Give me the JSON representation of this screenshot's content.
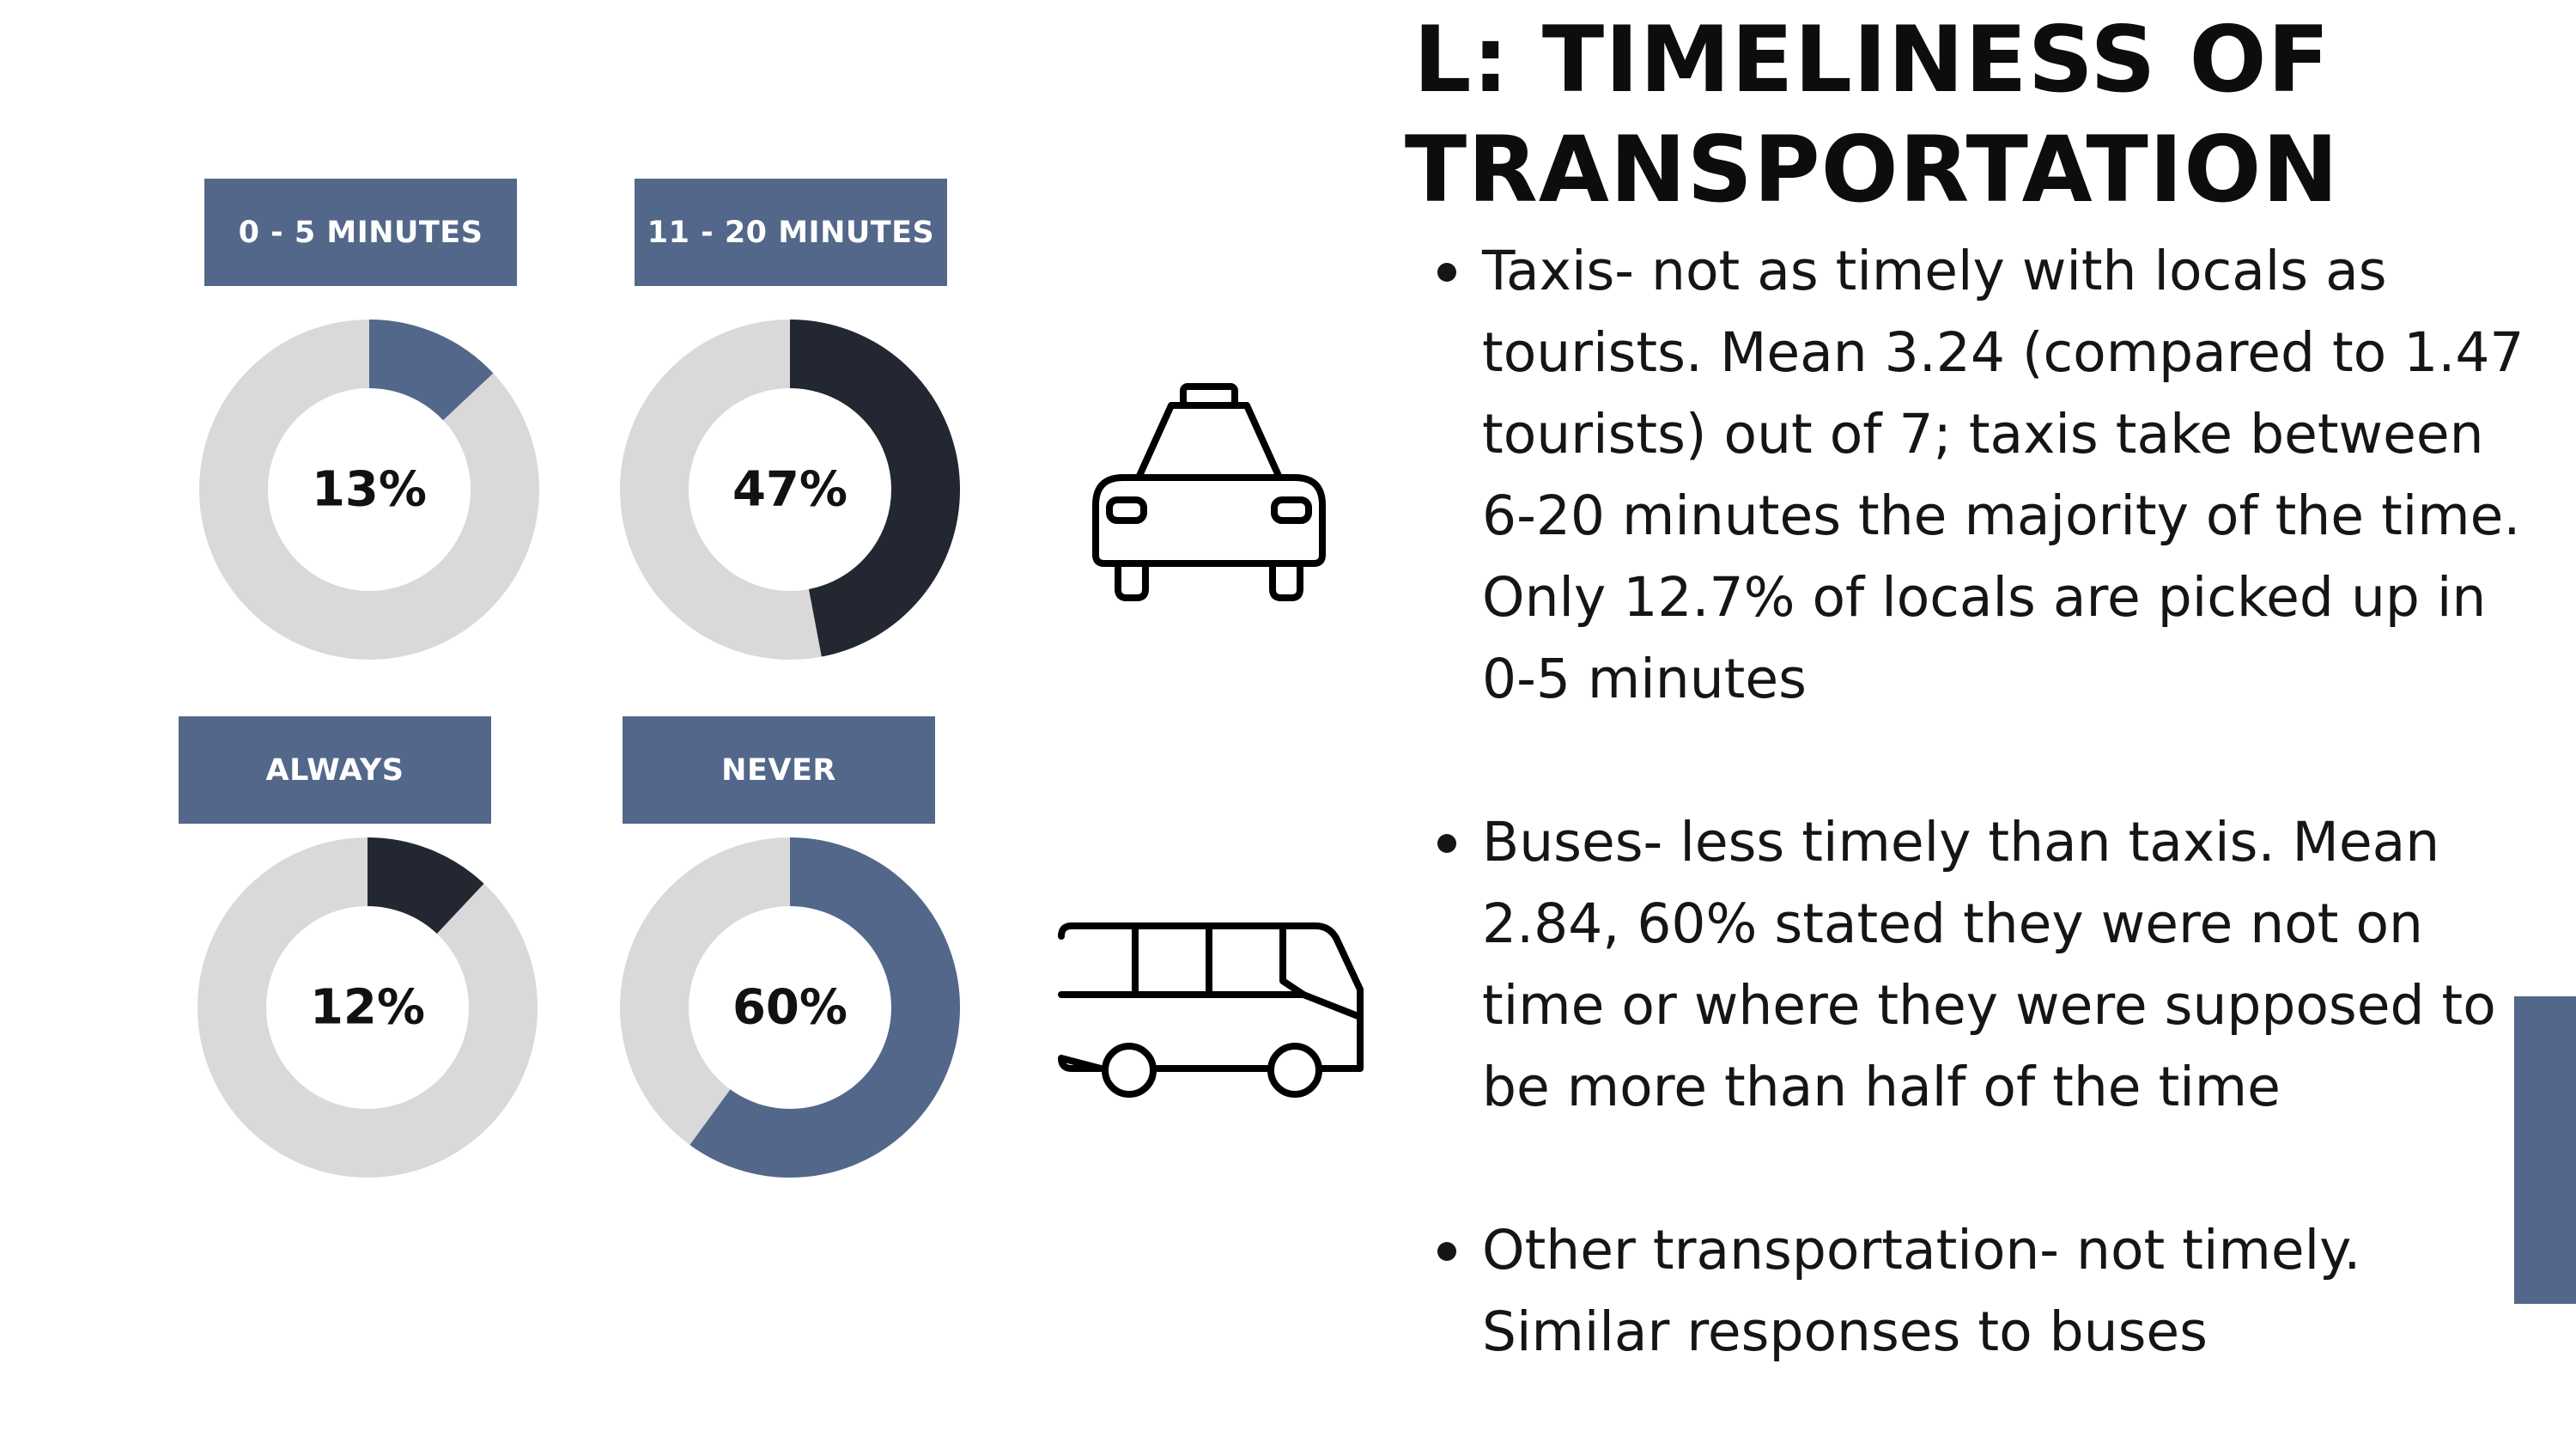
{
  "title": "L: TIMELINESS OF TRANSPORTATION",
  "colors": {
    "slate": "#53678a",
    "dark": "#222732",
    "track": "#d9d9d9",
    "text": "#111111"
  },
  "chart_data": [
    {
      "type": "pie",
      "title": "0 - 5 MINUTES",
      "value_percent": 13,
      "center_label": "13%",
      "fill_color": "#53678a"
    },
    {
      "type": "pie",
      "title": "11 - 20 MINUTES",
      "value_percent": 47,
      "center_label": "47%",
      "fill_color": "#222732"
    },
    {
      "type": "pie",
      "title": "ALWAYS",
      "value_percent": 12,
      "center_label": "12%",
      "fill_color": "#222732"
    },
    {
      "type": "pie",
      "title": "NEVER",
      "value_percent": 60,
      "center_label": "60%",
      "fill_color": "#53678a"
    }
  ],
  "icons": {
    "taxi": "taxi-icon",
    "bus": "bus-icon"
  },
  "bullets": [
    "Taxis- not as timely with locals as tourists. Mean 3.24 (compared to 1.47 tourists) out of 7; taxis take between 6-20 minutes the majority of the time. Only 12.7% of locals are picked up in 0-5 minutes",
    "Buses- less timely than taxis. Mean 2.84, 60% stated they were not on time or where they were supposed to be more than half of the time",
    "Other transportation- not timely. Similar responses to buses"
  ]
}
